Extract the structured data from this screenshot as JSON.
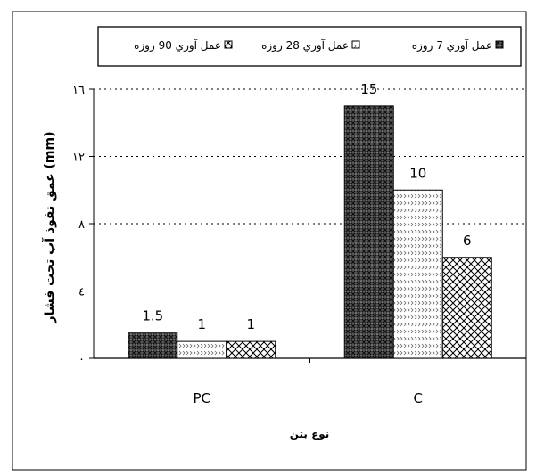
{
  "chart_data": {
    "type": "bar",
    "categories": [
      "PC",
      "C"
    ],
    "series": [
      {
        "name": "عمل آوري 7 روزه",
        "values": [
          1.5,
          15
        ],
        "pattern": "cross",
        "labels": [
          "1.5",
          "15"
        ]
      },
      {
        "name": "عمل آوري 28 روزه",
        "values": [
          1,
          10
        ],
        "pattern": "dots",
        "labels": [
          "1",
          "10"
        ]
      },
      {
        "name": "عمل آوري 90 روزه",
        "values": [
          1,
          6
        ],
        "pattern": "zigzag",
        "labels": [
          "1",
          "6"
        ]
      }
    ],
    "ylim": [
      0,
      16
    ],
    "yticks": [
      0,
      4,
      8,
      12,
      16
    ],
    "ytick_labels": [
      "٠",
      "٤",
      "٨",
      "١٢",
      "١٦"
    ],
    "ylabel": "عمق نفوذ آب تحت فشار (mm)",
    "xlabel": "نوع بتن",
    "grid": true,
    "legend_position": "top"
  },
  "colors": {
    "frame": "#000000",
    "grid": "#000000",
    "background": "#ffffff"
  }
}
